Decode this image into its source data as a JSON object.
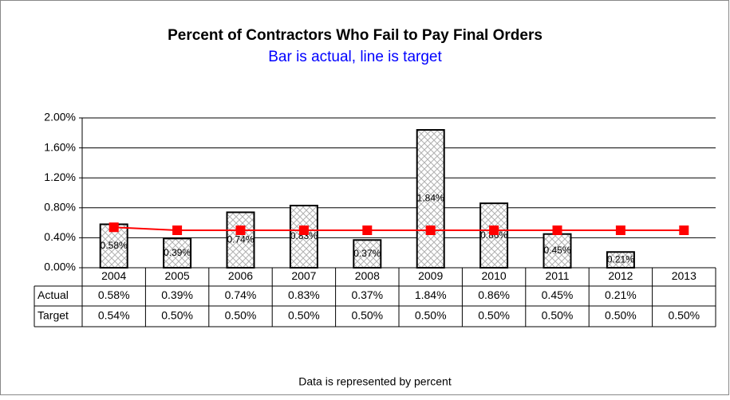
{
  "chart_data": {
    "type": "bar",
    "title": "Percent of Contractors Who Fail to Pay Final Orders",
    "subtitle": "Bar is actual, line is target",
    "footnote": "Data is represented by percent",
    "categories": [
      "2004",
      "2005",
      "2006",
      "2007",
      "2008",
      "2009",
      "2010",
      "2011",
      "2012",
      "2013"
    ],
    "series": [
      {
        "name": "Actual",
        "type": "bar",
        "color": "#000000",
        "values": [
          0.58,
          0.39,
          0.74,
          0.83,
          0.37,
          1.84,
          0.86,
          0.45,
          0.21,
          null
        ],
        "value_labels": [
          "0.58%",
          "0.39%",
          "0.74%",
          "0.83%",
          "0.37%",
          "1.84%",
          "0.86%",
          "0.45%",
          "0.21%",
          null
        ]
      },
      {
        "name": "Target",
        "type": "line",
        "color": "#ff0000",
        "values": [
          0.54,
          0.5,
          0.5,
          0.5,
          0.5,
          0.5,
          0.5,
          0.5,
          0.5,
          0.5
        ],
        "value_labels": [
          "0.54%",
          "0.50%",
          "0.50%",
          "0.50%",
          "0.50%",
          "0.50%",
          "0.50%",
          "0.50%",
          "0.50%",
          "0.50%"
        ]
      }
    ],
    "ylim": [
      0,
      2
    ],
    "yticks": [
      {
        "value": 0,
        "label": "0.00%"
      },
      {
        "value": 0.4,
        "label": "0.40%"
      },
      {
        "value": 0.8,
        "label": "0.80%"
      },
      {
        "value": 1.2,
        "label": "1.20%"
      },
      {
        "value": 1.6,
        "label": "1.60%"
      },
      {
        "value": 2,
        "label": "2.00%"
      }
    ],
    "grid": true
  }
}
